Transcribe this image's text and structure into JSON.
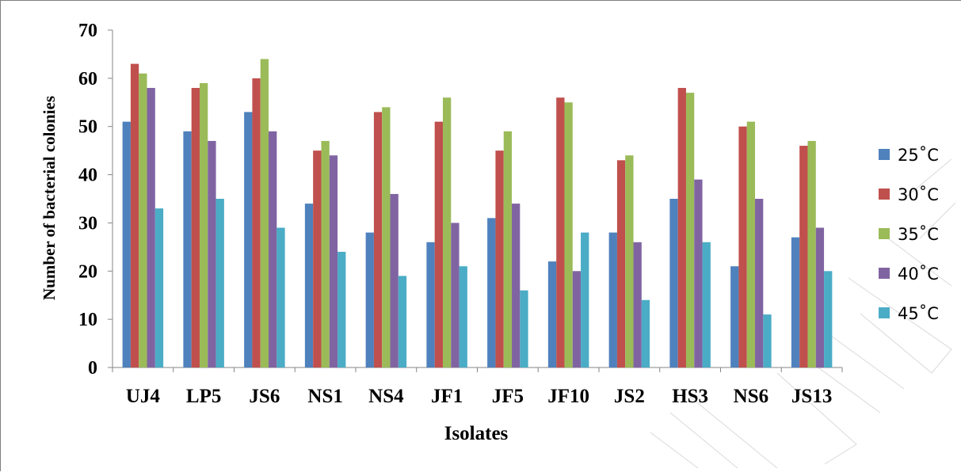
{
  "chart_data": {
    "type": "bar",
    "title": "",
    "xlabel": "Isolates",
    "ylabel": "Number of bacterial colonies",
    "ylim": [
      0,
      70
    ],
    "yticks": [
      0,
      10,
      20,
      30,
      40,
      50,
      60,
      70
    ],
    "grid": false,
    "legend_position": "right",
    "categories": [
      "UJ4",
      "LP5",
      "JS6",
      "NS1",
      "NS4",
      "JF1",
      "JF5",
      "JF10",
      "JS2",
      "HS3",
      "NS6",
      "JS13"
    ],
    "series": [
      {
        "name": "25˚C",
        "color": "#4f81bd",
        "values": [
          51,
          49,
          53,
          34,
          28,
          26,
          31,
          22,
          28,
          35,
          21,
          27
        ]
      },
      {
        "name": "30˚C",
        "color": "#c0504d",
        "values": [
          63,
          58,
          60,
          45,
          53,
          51,
          45,
          56,
          43,
          58,
          50,
          46
        ]
      },
      {
        "name": "35˚C",
        "color": "#9bbb59",
        "values": [
          61,
          59,
          64,
          47,
          54,
          56,
          49,
          55,
          44,
          57,
          51,
          47
        ]
      },
      {
        "name": "40˚C",
        "color": "#8064a2",
        "values": [
          58,
          47,
          49,
          44,
          36,
          30,
          34,
          20,
          26,
          39,
          35,
          29
        ]
      },
      {
        "name": "45˚C",
        "color": "#4bacc6",
        "values": [
          33,
          35,
          29,
          24,
          19,
          21,
          16,
          28,
          14,
          26,
          11,
          20
        ]
      }
    ]
  }
}
